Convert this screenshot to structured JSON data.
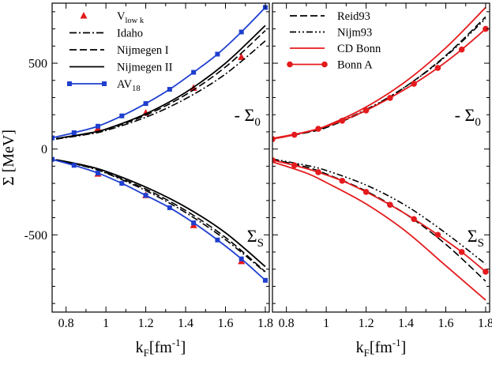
{
  "chart_data": [
    {
      "type": "line",
      "panel": "left",
      "ylabel_main": "Σ [MeV]",
      "xlabel_main": "k",
      "xlabel_sub": "F",
      "xlabel_unit": "[fm",
      "xlabel_exp": "-1",
      "xlabel_close": "]",
      "xlim": [
        0.73,
        1.82
      ],
      "ylim": [
        -950,
        850
      ],
      "x_ticks": [
        0.8,
        1.0,
        1.2,
        1.4,
        1.6,
        1.8
      ],
      "x_tick_labels": [
        "0.8",
        "1",
        "1.2",
        "1.4",
        "1.6",
        "1.8"
      ],
      "y_ticks": [
        500,
        0,
        -500
      ],
      "y_tick_labels": [
        "500",
        "0",
        "-500"
      ],
      "legend_position": "top-left",
      "annotations": [
        {
          "main": "- Σ",
          "sub": "0",
          "x": 1.71,
          "y": 165
        },
        {
          "main": "Σ",
          "sub": "S",
          "x": 1.75,
          "y": -540
        }
      ],
      "series": [
        {
          "name": "V",
          "name_sub": "low k",
          "color": "#e41a1c",
          "style": "markers",
          "marker": "triangle",
          "x": [
            0.96,
            1.2,
            1.44,
            1.68
          ],
          "y0": [
            120,
            210,
            355,
            535
          ],
          "yS": [
            -145,
            -270,
            -445,
            -655
          ]
        },
        {
          "name": "Idaho",
          "color": "#000000",
          "style": "dashdot",
          "x": [
            0.75,
            0.9,
            1.0,
            1.2,
            1.4,
            1.6,
            1.8
          ],
          "y0": [
            58,
            84,
            108,
            185,
            293,
            437,
            630
          ],
          "yS": [
            -65,
            -103,
            -140,
            -242,
            -370,
            -528,
            -718
          ]
        },
        {
          "name": "Nijmegen I",
          "color": "#000000",
          "style": "dashed",
          "x": [
            0.75,
            0.9,
            1.0,
            1.2,
            1.4,
            1.6,
            1.8
          ],
          "y0": [
            60,
            88,
            113,
            197,
            316,
            478,
            690
          ],
          "yS": [
            -65,
            -100,
            -137,
            -233,
            -358,
            -515,
            -715
          ]
        },
        {
          "name": "Nijmegen II",
          "color": "#000000",
          "style": "solid",
          "x": [
            0.75,
            0.9,
            1.0,
            1.2,
            1.4,
            1.6,
            1.8
          ],
          "y0": [
            61,
            90,
            116,
            205,
            330,
            500,
            720
          ],
          "yS": [
            -62,
            -97,
            -130,
            -222,
            -338,
            -488,
            -685
          ]
        },
        {
          "name": "AV",
          "name_sub": "18",
          "color": "#1f3fd0",
          "style": "line-square",
          "x": [
            0.73,
            0.84,
            0.96,
            1.08,
            1.2,
            1.32,
            1.44,
            1.56,
            1.68,
            1.8
          ],
          "y0": [
            65,
            95,
            133,
            193,
            265,
            348,
            447,
            553,
            682,
            825
          ],
          "yS": [
            -60,
            -95,
            -140,
            -200,
            -270,
            -342,
            -430,
            -530,
            -640,
            -765
          ]
        }
      ]
    },
    {
      "type": "line",
      "panel": "right",
      "xlabel_main": "k",
      "xlabel_sub": "F",
      "xlabel_unit": "[fm",
      "xlabel_exp": "-1",
      "xlabel_close": "]",
      "xlim": [
        0.73,
        1.82
      ],
      "ylim": [
        -950,
        850
      ],
      "x_ticks": [
        0.8,
        1.0,
        1.2,
        1.4,
        1.6,
        1.8
      ],
      "x_tick_labels": [
        "0.8",
        "1",
        "1.2",
        "1.4",
        "1.6",
        "1.8"
      ],
      "y_ticks": [
        500,
        0,
        -500
      ],
      "legend_position": "top-left",
      "annotations": [
        {
          "main": "- Σ",
          "sub": "0",
          "x": 1.71,
          "y": 165
        },
        {
          "main": "Σ",
          "sub": "S",
          "x": 1.75,
          "y": -540
        }
      ],
      "series": [
        {
          "name": "Reid93",
          "color": "#000000",
          "style": "dashed",
          "x": [
            0.73,
            0.9,
            1.0,
            1.2,
            1.4,
            1.6,
            1.8
          ],
          "y0": [
            60,
            95,
            125,
            225,
            365,
            545,
            770
          ],
          "yS": [
            -60,
            -105,
            -145,
            -245,
            -380,
            -555,
            -770
          ]
        },
        {
          "name": "Nijm93",
          "color": "#000000",
          "style": "dashdotdot",
          "x": [
            0.73,
            0.9,
            1.0,
            1.2,
            1.4,
            1.6,
            1.8
          ],
          "y0": [
            60,
            98,
            130,
            230,
            365,
            540,
            760
          ],
          "yS": [
            -58,
            -95,
            -125,
            -210,
            -330,
            -490,
            -670
          ]
        },
        {
          "name": "CD Bonn",
          "color": "#e41a1c",
          "style": "solid",
          "x": [
            0.73,
            0.9,
            1.0,
            1.2,
            1.4,
            1.6,
            1.8
          ],
          "y0": [
            62,
            100,
            135,
            245,
            395,
            590,
            825
          ],
          "yS": [
            -75,
            -140,
            -195,
            -320,
            -480,
            -680,
            -880
          ]
        },
        {
          "name": "Bonn A",
          "color": "#e41a1c",
          "style": "line-circle",
          "x": [
            0.73,
            0.84,
            0.96,
            1.08,
            1.2,
            1.32,
            1.44,
            1.56,
            1.68,
            1.8
          ],
          "y0": [
            58,
            83,
            118,
            165,
            225,
            298,
            380,
            473,
            580,
            700
          ],
          "yS": [
            -65,
            -95,
            -135,
            -185,
            -250,
            -325,
            -408,
            -500,
            -600,
            -715
          ]
        }
      ]
    }
  ]
}
